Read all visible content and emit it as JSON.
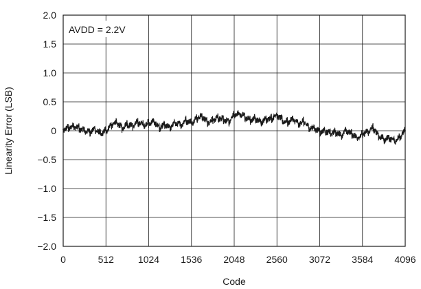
{
  "chart_data": {
    "type": "line",
    "title": "",
    "xlabel": "Code",
    "ylabel": "Linearity Error (LSB)",
    "xlim": [
      0,
      4096
    ],
    "ylim": [
      -2.0,
      2.0
    ],
    "x_ticks": [
      0,
      512,
      1024,
      1536,
      2048,
      2560,
      3072,
      3584,
      4096
    ],
    "x_tick_labels": [
      "0",
      "512",
      "1024",
      "1536",
      "2048",
      "2560",
      "3072",
      "3584",
      "4096"
    ],
    "y_ticks": [
      2.0,
      1.5,
      1.0,
      0.5,
      0,
      -0.5,
      -1.0,
      -1.5,
      -2.0
    ],
    "y_tick_labels": [
      "2.0",
      "1.5",
      "1.0",
      "0.5",
      "0",
      "−0.5",
      "−1.0",
      "−1.5",
      "−2.0"
    ],
    "grid": true,
    "legend": "none",
    "annotation": "AVDD = 2.2V",
    "line_color": "#1a1a1a",
    "series": [
      {
        "x": [
          0,
          64,
          128,
          192,
          256,
          320,
          384,
          448,
          512,
          576,
          640,
          704,
          768,
          832,
          896,
          960,
          1024,
          1088,
          1152,
          1216,
          1280,
          1344,
          1408,
          1472,
          1536,
          1600,
          1664,
          1728,
          1792,
          1856,
          1920,
          1984,
          2048,
          2112,
          2176,
          2240,
          2304,
          2368,
          2432,
          2496,
          2560,
          2624,
          2688,
          2752,
          2816,
          2880,
          2944,
          3008,
          3072,
          3136,
          3200,
          3264,
          3328,
          3392,
          3456,
          3520,
          3584,
          3648,
          3712,
          3776,
          3840,
          3904,
          3968,
          4032,
          4096
        ],
        "values": [
          0.02,
          0.05,
          0.08,
          0.04,
          0.0,
          -0.02,
          0.03,
          -0.06,
          0.0,
          0.1,
          0.14,
          0.05,
          0.12,
          0.08,
          0.15,
          0.1,
          0.13,
          0.16,
          0.05,
          0.1,
          0.06,
          0.14,
          0.1,
          0.18,
          0.14,
          0.22,
          0.25,
          0.15,
          0.18,
          0.22,
          0.2,
          0.15,
          0.28,
          0.3,
          0.24,
          0.18,
          0.22,
          0.15,
          0.2,
          0.22,
          0.28,
          0.18,
          0.15,
          0.2,
          0.12,
          0.16,
          0.05,
          0.05,
          -0.02,
          0.0,
          -0.05,
          -0.02,
          -0.08,
          0.0,
          -0.05,
          -0.12,
          -0.06,
          -0.02,
          0.05,
          -0.08,
          -0.15,
          -0.12,
          -0.18,
          -0.1,
          0.0
        ]
      }
    ]
  }
}
